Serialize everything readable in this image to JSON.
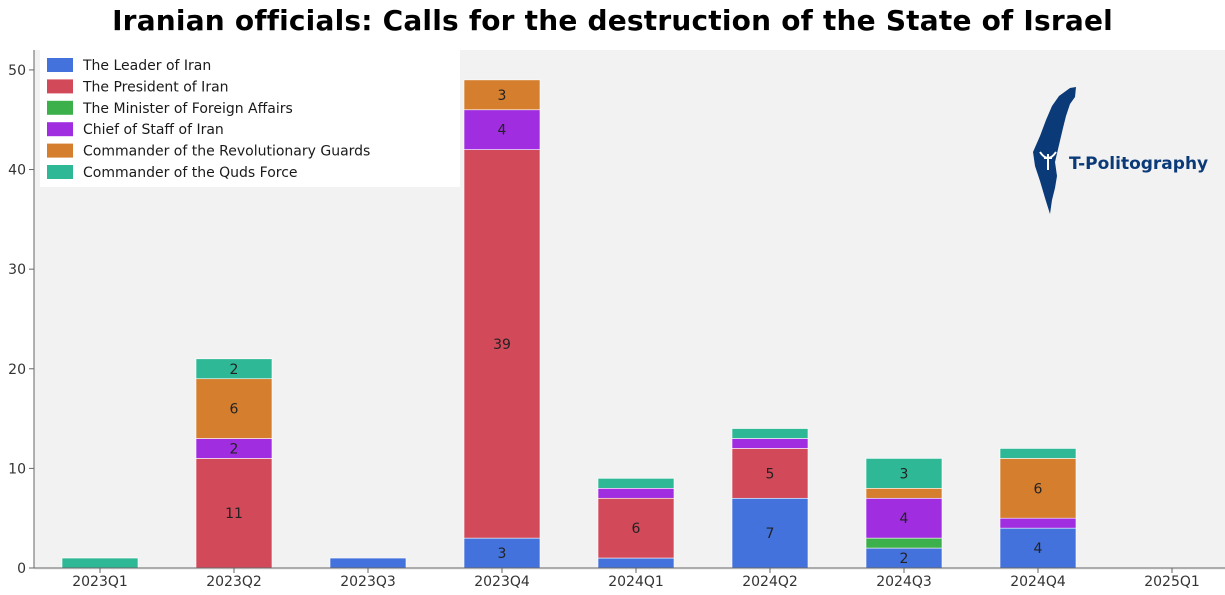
{
  "title": "Iranian officials: Calls for the destruction of the State of Israel",
  "logo_text": "T-Politography",
  "chart_data": {
    "type": "bar",
    "stacked": true,
    "categories": [
      "2023Q1",
      "2023Q2",
      "2023Q3",
      "2023Q4",
      "2024Q1",
      "2024Q2",
      "2024Q3",
      "2024Q4",
      "2025Q1"
    ],
    "ylim": [
      0,
      52
    ],
    "yticks": [
      0,
      10,
      20,
      30,
      40,
      50
    ],
    "legend_position": "top-left",
    "grid": false,
    "series": [
      {
        "name": "The Leader of Iran",
        "color": "#4472dd",
        "values": [
          0,
          0,
          1,
          3,
          1,
          7,
          2,
          4,
          0
        ]
      },
      {
        "name": "The President of Iran",
        "color": "#d24a5a",
        "values": [
          0,
          11,
          0,
          39,
          6,
          5,
          0,
          0,
          0
        ]
      },
      {
        "name": "The Minister of Foreign Affairs",
        "color": "#3cb04a",
        "values": [
          0,
          0,
          0,
          0,
          0,
          0,
          1,
          0,
          0
        ]
      },
      {
        "name": "Chief of Staff of Iran",
        "color": "#a02ee0",
        "values": [
          0,
          2,
          0,
          4,
          1,
          1,
          4,
          1,
          0
        ]
      },
      {
        "name": "Commander of the Revolutionary Guards",
        "color": "#d57f2e",
        "values": [
          0,
          6,
          0,
          3,
          0,
          0,
          1,
          6,
          0
        ]
      },
      {
        "name": "Commander of the Quds Force",
        "color": "#2fb896",
        "values": [
          1,
          2,
          0,
          0,
          1,
          1,
          3,
          1,
          0
        ]
      }
    ],
    "data_labels": [
      {
        "category": "2023Q2",
        "series": "The President of Iran",
        "text": "11"
      },
      {
        "category": "2023Q2",
        "series": "Chief of Staff of Iran",
        "text": "2"
      },
      {
        "category": "2023Q2",
        "series": "Commander of the Revolutionary Guards",
        "text": "6"
      },
      {
        "category": "2023Q2",
        "series": "Commander of the Quds Force",
        "text": "2"
      },
      {
        "category": "2023Q4",
        "series": "The Leader of Iran",
        "text": "3"
      },
      {
        "category": "2023Q4",
        "series": "The President of Iran",
        "text": "39"
      },
      {
        "category": "2023Q4",
        "series": "Chief of Staff of Iran",
        "text": "4"
      },
      {
        "category": "2023Q4",
        "series": "Commander of the Revolutionary Guards",
        "text": "3"
      },
      {
        "category": "2024Q1",
        "series": "The President of Iran",
        "text": "6"
      },
      {
        "category": "2024Q2",
        "series": "The Leader of Iran",
        "text": "7"
      },
      {
        "category": "2024Q2",
        "series": "The President of Iran",
        "text": "5"
      },
      {
        "category": "2024Q3",
        "series": "The Leader of Iran",
        "text": "2"
      },
      {
        "category": "2024Q3",
        "series": "Chief of Staff of Iran",
        "text": "4"
      },
      {
        "category": "2024Q3",
        "series": "Commander of the Quds Force",
        "text": "3"
      },
      {
        "category": "2024Q4",
        "series": "The Leader of Iran",
        "text": "4"
      },
      {
        "category": "2024Q4",
        "series": "Commander of the Revolutionary Guards",
        "text": "6"
      }
    ]
  }
}
